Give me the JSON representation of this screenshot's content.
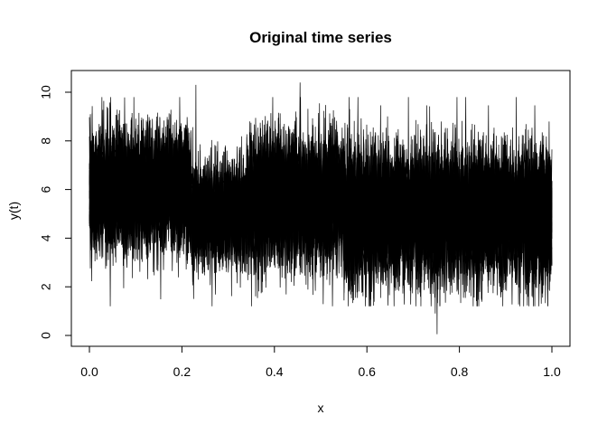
{
  "chart_data": {
    "type": "line",
    "title": "Original time series",
    "xlabel": "x",
    "ylabel": "y(t)",
    "xlim": [
      0,
      1
    ],
    "ylim": [
      0,
      10.4
    ],
    "x_ticks": [
      "0.0",
      "0.2",
      "0.4",
      "0.6",
      "0.8",
      "1.0"
    ],
    "y_ticks": [
      "0",
      "2",
      "4",
      "6",
      "8",
      "10"
    ],
    "grid": false,
    "legend": "none",
    "line_color": "#000000",
    "n_series": 20,
    "n_points": 1000,
    "segments": [
      {
        "x_start": 0.0,
        "x_end": 0.22,
        "mean": 6.0,
        "spread": 1.2
      },
      {
        "x_start": 0.22,
        "x_end": 0.34,
        "mean": 5.0,
        "spread": 1.0
      },
      {
        "x_start": 0.34,
        "x_end": 0.55,
        "mean": 5.6,
        "spread": 1.3
      },
      {
        "x_start": 0.55,
        "x_end": 1.0,
        "mean": 5.0,
        "spread": 1.35
      }
    ],
    "extremes": [
      {
        "x": 0.23,
        "y": 10.3
      },
      {
        "x": 0.455,
        "y": 10.4
      },
      {
        "x": 0.265,
        "y": 1.2
      },
      {
        "x": 0.752,
        "y": 0.05
      },
      {
        "x": 0.748,
        "y": 0.9
      },
      {
        "x": 0.225,
        "y": 1.5
      }
    ]
  }
}
